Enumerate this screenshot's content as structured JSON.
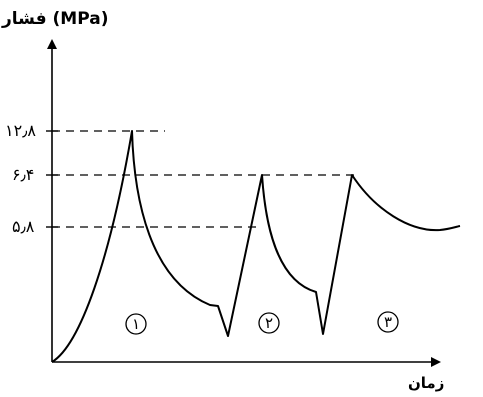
{
  "chart_data": {
    "type": "line",
    "ylabel": "فشار (MPa)",
    "xlabel": "زمان",
    "reference_lines": [
      {
        "value": 12.8,
        "label": "۱۲٫۸"
      },
      {
        "value": 6.4,
        "label": "۶٫۴"
      },
      {
        "value": 5.8,
        "label": "۵٫۸"
      }
    ],
    "stages": [
      {
        "label": "۱",
        "peak": 12.8
      },
      {
        "label": "۲",
        "peak": 6.4
      },
      {
        "label": "۳",
        "peak": 6.4
      }
    ]
  }
}
